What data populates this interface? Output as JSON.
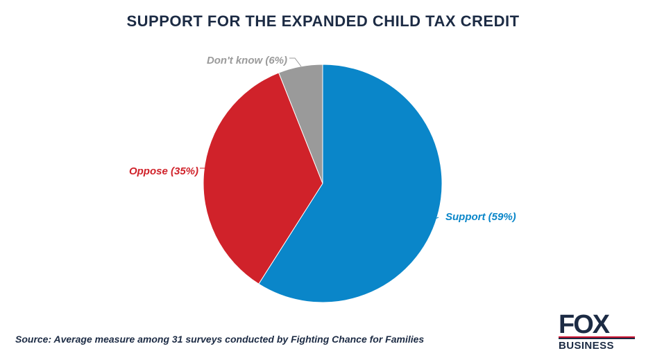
{
  "title": "SUPPORT FOR THE EXPANDED CHILD TAX CREDIT",
  "source": "Source: Average measure among 31 surveys conducted by Fighting Chance for Families",
  "logo": {
    "top": "FOX",
    "bottom": "BUSINESS"
  },
  "colors": {
    "title": "#1c2b44",
    "support": "#0a86c9",
    "oppose": "#d0222a",
    "dont_know": "#9a9a9a",
    "logo_text": "#1c2b44"
  },
  "chart_data": {
    "type": "pie",
    "slices": [
      {
        "label": "Support (59%)",
        "value": 59,
        "color": "#0a86c9"
      },
      {
        "label": "Oppose (35%)",
        "value": 35,
        "color": "#d0222a"
      },
      {
        "label": "Don't know (6%)",
        "value": 6,
        "color": "#9a9a9a"
      }
    ],
    "start": "12 o'clock",
    "direction": "clockwise"
  }
}
